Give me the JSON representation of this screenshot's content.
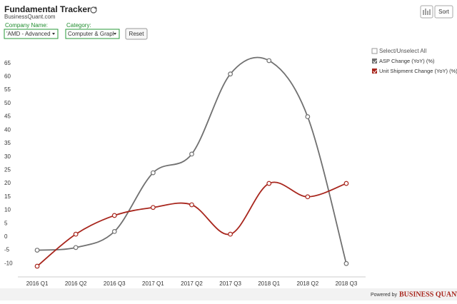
{
  "header": {
    "title": "Fundamental Tracker",
    "subtitle": "BusinessQuant.com"
  },
  "controls": {
    "company_label": "Company Name:",
    "company_value": "'AMD - Advanced",
    "category_label": "Category:",
    "category_value": "Computer & Grapl",
    "reset": "Reset",
    "sort": "Sort"
  },
  "legend": {
    "select_all": "Select/Unselect All"
  },
  "footer": {
    "powered_by": "Powered by",
    "brand": "BUSINESS QUANT"
  },
  "chart_data": {
    "type": "line",
    "categories": [
      "2016 Q1",
      "2016 Q2",
      "2016 Q3",
      "2017 Q1",
      "2017 Q2",
      "2017 Q3",
      "2018 Q1",
      "2018 Q2",
      "2018 Q3"
    ],
    "series": [
      {
        "name": "ASP Change (YoY) (%)",
        "color": "#707070",
        "values": [
          -5,
          -4,
          2,
          24,
          31,
          61,
          66,
          45,
          -10
        ]
      },
      {
        "name": "Unit Shipment Change (YoY) (%)",
        "color": "#a8261d",
        "values": [
          -11,
          1,
          8,
          11,
          12,
          1,
          20,
          15,
          20
        ]
      }
    ],
    "ylim": [
      -15,
      70
    ],
    "yticks": [
      -10,
      -5,
      0,
      5,
      10,
      15,
      20,
      25,
      30,
      35,
      40,
      45,
      50,
      55,
      60,
      65
    ],
    "grid": false,
    "legend": "top-right"
  }
}
